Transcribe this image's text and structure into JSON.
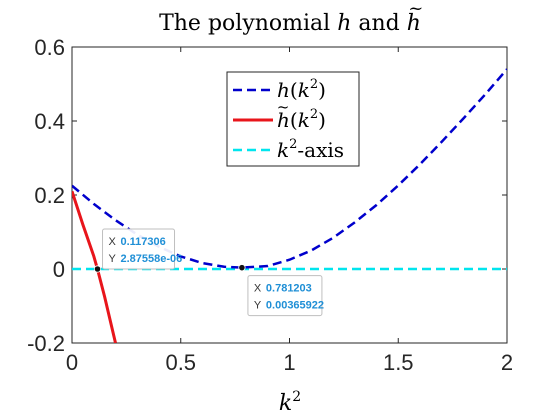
{
  "chart_data": {
    "type": "line",
    "title": {
      "prefix": "The polynomial ",
      "var1": "h",
      "middle": " and ",
      "var2": "h",
      "var2_accent": "~"
    },
    "xlabel": {
      "base": "k",
      "sup": "2"
    },
    "ylabel": "",
    "xlim": [
      0,
      2
    ],
    "ylim": [
      -0.2,
      0.6
    ],
    "xticks": [
      0,
      0.5,
      1,
      1.5,
      2
    ],
    "xtick_labels": [
      "0",
      "0.5",
      "1",
      "1.5",
      "2"
    ],
    "yticks": [
      -0.2,
      0,
      0.2,
      0.4,
      0.6
    ],
    "ytick_labels": [
      "-0.2",
      "0",
      "0.2",
      "0.4",
      "0.6"
    ],
    "grid": false,
    "legend_placement": "top-center",
    "series": [
      {
        "label": {
          "func": "h",
          "accent": "",
          "arg_base": "k",
          "arg_sup": "2"
        },
        "color": "#0000cc",
        "line_style": "dashed",
        "x": [
          0,
          0.1,
          0.2,
          0.3,
          0.4,
          0.5,
          0.6,
          0.7,
          0.781,
          0.9,
          1.0,
          1.1,
          1.2,
          1.3,
          1.4,
          1.5,
          1.6,
          1.7,
          1.8,
          1.9,
          2.0
        ],
        "y": [
          0.225,
          0.176,
          0.132,
          0.093,
          0.06,
          0.034,
          0.016,
          0.006,
          0.0037,
          0.008,
          0.025,
          0.05,
          0.084,
          0.126,
          0.173,
          0.226,
          0.283,
          0.344,
          0.407,
          0.472,
          0.54
        ]
      },
      {
        "label": {
          "func": "h",
          "accent": "~",
          "arg_base": "k",
          "arg_sup": "2"
        },
        "color": "#e8151b",
        "line_style": "solid",
        "x": [
          0,
          0.05,
          0.1,
          0.117,
          0.15,
          0.2
        ],
        "y": [
          0.21,
          0.12,
          0.035,
          0.0,
          -0.075,
          -0.2
        ]
      },
      {
        "label": {
          "func": "",
          "accent": "",
          "arg_base": "k",
          "arg_sup": "2",
          "suffix": "-axis"
        },
        "color": "#00e5ee",
        "line_style": "dashed",
        "x": [
          0,
          2
        ],
        "y": [
          0,
          0
        ]
      }
    ],
    "datatips": [
      {
        "x": 0.117306,
        "y": 2.87558e-06,
        "x_text": "0.117306",
        "y_text": "2.87558e-06",
        "x_key": "X",
        "y_key": "Y"
      },
      {
        "x": 0.781203,
        "y": 0.00365922,
        "x_text": "0.781203",
        "y_text": "0.00365922",
        "x_key": "X",
        "y_key": "Y"
      }
    ]
  }
}
